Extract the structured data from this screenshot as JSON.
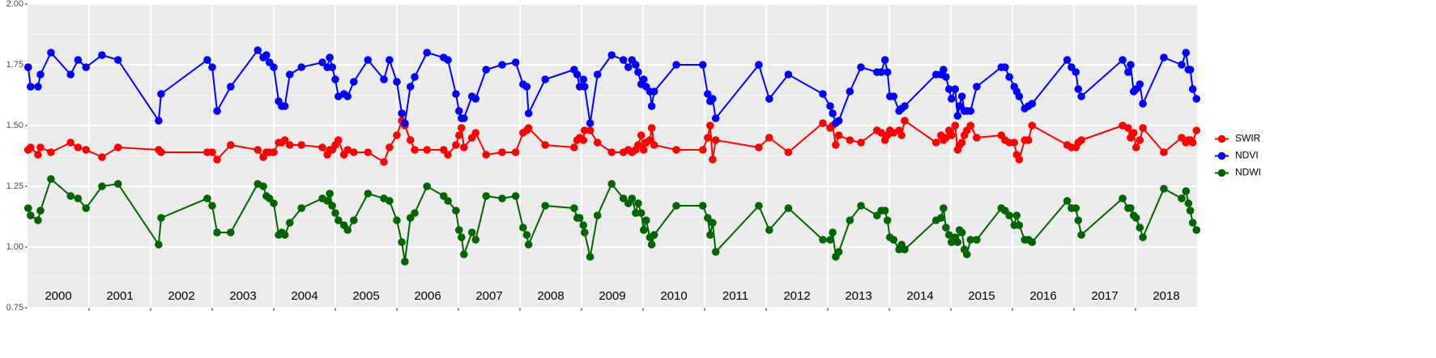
{
  "chart_data": {
    "type": "line",
    "x": [
      2000.01,
      2000.05,
      2000.17,
      2000.21,
      2000.38,
      2000.7,
      2000.82,
      2000.95,
      2001.21,
      2001.47,
      2002.13,
      2002.17,
      2002.92,
      2003,
      2003.08,
      2003.3,
      2003.74,
      2003.83,
      2003.88,
      2003.93,
      2004,
      2004.08,
      2004.13,
      2004.18,
      2004.26,
      2004.45,
      2004.79,
      2004.87,
      2004.91,
      2004.95,
      2005,
      2005.05,
      2005.14,
      2005.2,
      2005.3,
      2005.53,
      2005.79,
      2005.88,
      2006,
      2006.08,
      2006.13,
      2006.22,
      2006.29,
      2006.49,
      2006.76,
      2006.83,
      2006.96,
      2007.01,
      2007.05,
      2007.09,
      2007.22,
      2007.28,
      2007.45,
      2007.71,
      2007.93,
      2008.05,
      2008.11,
      2008.14,
      2008.41,
      2008.88,
      2008.93,
      2008.97,
      2009.03,
      2009.05,
      2009.14,
      2009.26,
      2009.49,
      2009.68,
      2009.76,
      2009.82,
      2009.88,
      2009.92,
      2009.97,
      2010.01,
      2010.05,
      2010.11,
      2010.14,
      2010.18,
      2010.54,
      2010.97,
      2011.05,
      2011.09,
      2011.13,
      2011.18,
      2011.88,
      2012.05,
      2012.36,
      2012.92,
      2013.04,
      2013.08,
      2013.13,
      2013.18,
      2013.36,
      2013.54,
      2013.8,
      2013.87,
      2013.93,
      2013.97,
      2014.01,
      2014.07,
      2014.16,
      2014.2,
      2014.25,
      2014.76,
      2014.84,
      2014.88,
      2014.92,
      2014.97,
      2015.01,
      2015.07,
      2015.11,
      2015.14,
      2015.18,
      2015.22,
      2015.26,
      2015.32,
      2015.42,
      2015.82,
      2015.88,
      2015.95,
      2016.03,
      2016.07,
      2016.11,
      2016.2,
      2016.26,
      2016.32,
      2016.89,
      2016.96,
      2017.03,
      2017.07,
      2017.12,
      2017.79,
      2017.88,
      2017.92,
      2017.97,
      2018.01,
      2018.07,
      2018.12,
      2018.46,
      2018.75,
      2018.82,
      2018.86,
      2018.89,
      2018.93,
      2018.99
    ],
    "series": [
      {
        "name": "SWIR",
        "color": "#ff0000",
        "values": [
          1.4,
          1.41,
          1.38,
          1.41,
          1.39,
          1.43,
          1.41,
          1.4,
          1.37,
          1.41,
          1.4,
          1.39,
          1.39,
          1.39,
          1.36,
          1.42,
          1.4,
          1.37,
          1.39,
          1.39,
          1.39,
          1.43,
          1.43,
          1.44,
          1.42,
          1.42,
          1.41,
          1.38,
          1.4,
          1.4,
          1.42,
          1.44,
          1.38,
          1.4,
          1.39,
          1.39,
          1.35,
          1.41,
          1.46,
          1.52,
          1.5,
          1.44,
          1.4,
          1.4,
          1.4,
          1.38,
          1.42,
          1.46,
          1.49,
          1.41,
          1.45,
          1.47,
          1.38,
          1.39,
          1.39,
          1.47,
          1.48,
          1.49,
          1.42,
          1.41,
          1.44,
          1.45,
          1.44,
          1.48,
          1.48,
          1.43,
          1.39,
          1.39,
          1.4,
          1.39,
          1.4,
          1.42,
          1.46,
          1.4,
          1.43,
          1.44,
          1.49,
          1.42,
          1.4,
          1.4,
          1.45,
          1.5,
          1.36,
          1.44,
          1.41,
          1.45,
          1.39,
          1.51,
          1.49,
          1.5,
          1.42,
          1.46,
          1.44,
          1.43,
          1.48,
          1.47,
          1.44,
          1.46,
          1.48,
          1.47,
          1.48,
          1.46,
          1.52,
          1.43,
          1.46,
          1.44,
          1.45,
          1.48,
          1.46,
          1.5,
          1.4,
          1.42,
          1.43,
          1.46,
          1.48,
          1.5,
          1.45,
          1.46,
          1.44,
          1.43,
          1.43,
          1.38,
          1.36,
          1.44,
          1.44,
          1.5,
          1.42,
          1.41,
          1.41,
          1.43,
          1.44,
          1.5,
          1.49,
          1.45,
          1.47,
          1.41,
          1.44,
          1.49,
          1.39,
          1.45,
          1.43,
          1.44,
          1.44,
          1.43,
          1.48
        ]
      },
      {
        "name": "NDVI",
        "color": "#0000ff",
        "values": [
          1.74,
          1.66,
          1.66,
          1.71,
          1.8,
          1.71,
          1.77,
          1.74,
          1.79,
          1.77,
          1.52,
          1.63,
          1.77,
          1.74,
          1.56,
          1.66,
          1.81,
          1.78,
          1.79,
          1.76,
          1.74,
          1.6,
          1.58,
          1.58,
          1.71,
          1.74,
          1.76,
          1.74,
          1.78,
          1.74,
          1.69,
          1.62,
          1.63,
          1.62,
          1.68,
          1.77,
          1.69,
          1.77,
          1.68,
          1.55,
          1.51,
          1.66,
          1.7,
          1.8,
          1.78,
          1.77,
          1.63,
          1.56,
          1.53,
          1.53,
          1.62,
          1.61,
          1.73,
          1.75,
          1.76,
          1.67,
          1.66,
          1.55,
          1.69,
          1.73,
          1.71,
          1.66,
          1.69,
          1.66,
          1.51,
          1.71,
          1.79,
          1.77,
          1.74,
          1.77,
          1.75,
          1.72,
          1.67,
          1.69,
          1.66,
          1.64,
          1.58,
          1.64,
          1.75,
          1.75,
          1.63,
          1.6,
          1.61,
          1.53,
          1.75,
          1.61,
          1.71,
          1.63,
          1.58,
          1.55,
          1.51,
          1.52,
          1.64,
          1.74,
          1.72,
          1.72,
          1.77,
          1.72,
          1.62,
          1.62,
          1.56,
          1.57,
          1.58,
          1.71,
          1.71,
          1.73,
          1.7,
          1.65,
          1.61,
          1.65,
          1.54,
          1.58,
          1.62,
          1.56,
          1.56,
          1.56,
          1.66,
          1.74,
          1.74,
          1.7,
          1.66,
          1.64,
          1.62,
          1.57,
          1.58,
          1.59,
          1.77,
          1.74,
          1.72,
          1.65,
          1.62,
          1.77,
          1.72,
          1.75,
          1.64,
          1.65,
          1.67,
          1.59,
          1.78,
          1.75,
          1.8,
          1.73,
          1.73,
          1.65,
          1.61
        ]
      },
      {
        "name": "NDWI",
        "color": "#006400",
        "values": [
          1.16,
          1.13,
          1.11,
          1.15,
          1.28,
          1.21,
          1.2,
          1.16,
          1.25,
          1.26,
          1.01,
          1.12,
          1.2,
          1.17,
          1.06,
          1.06,
          1.26,
          1.25,
          1.21,
          1.2,
          1.18,
          1.05,
          1.06,
          1.05,
          1.1,
          1.16,
          1.2,
          1.19,
          1.22,
          1.17,
          1.14,
          1.11,
          1.09,
          1.07,
          1.11,
          1.22,
          1.2,
          1.19,
          1.11,
          1.02,
          0.94,
          1.12,
          1.14,
          1.25,
          1.21,
          1.19,
          1.15,
          1.07,
          1.04,
          0.97,
          1.06,
          1.03,
          1.21,
          1.2,
          1.21,
          1.08,
          1.05,
          1.01,
          1.17,
          1.16,
          1.12,
          1.12,
          1.09,
          1.06,
          0.96,
          1.13,
          1.26,
          1.2,
          1.18,
          1.2,
          1.14,
          1.18,
          1.14,
          1.07,
          1.11,
          1.04,
          1.01,
          1.05,
          1.17,
          1.17,
          1.12,
          1.05,
          1.1,
          0.98,
          1.17,
          1.07,
          1.16,
          1.03,
          1.03,
          1.06,
          0.96,
          0.98,
          1.11,
          1.17,
          1.13,
          1.15,
          1.15,
          1.11,
          1.04,
          1.03,
          0.99,
          1.01,
          0.99,
          1.11,
          1.12,
          1.16,
          1.08,
          1.05,
          1.02,
          1.04,
          1.02,
          1.07,
          1.06,
          0.99,
          0.97,
          1.03,
          1.03,
          1.16,
          1.15,
          1.13,
          1.09,
          1.13,
          1.09,
          1.03,
          1.03,
          1.02,
          1.19,
          1.16,
          1.16,
          1.11,
          1.05,
          1.2,
          1.16,
          1.16,
          1.13,
          1.12,
          1.08,
          1.04,
          1.24,
          1.2,
          1.23,
          1.18,
          1.15,
          1.1,
          1.07
        ]
      }
    ],
    "xlim": [
      2000,
      2019
    ],
    "xticks": [
      2001,
      2002,
      2003,
      2004,
      2005,
      2006,
      2007,
      2008,
      2009,
      2010,
      2011,
      2012,
      2013,
      2014,
      2015,
      2016,
      2017,
      2018
    ],
    "year_labels": [
      "2000",
      "2001",
      "2002",
      "2003",
      "2004",
      "2005",
      "2006",
      "2007",
      "2008",
      "2009",
      "2010",
      "2011",
      "2012",
      "2013",
      "2014",
      "2015",
      "2016",
      "2017",
      "2018"
    ],
    "ylim": [
      0.75,
      2.0
    ],
    "yticks": [
      0.75,
      {
        "value": 1,
        "label": "1.00"
      },
      1.25,
      {
        "value": 1.5,
        "label": "1.50"
      },
      1.75,
      {
        "value": 2,
        "label": "2.00"
      }
    ],
    "grid": true,
    "legend": "right"
  }
}
